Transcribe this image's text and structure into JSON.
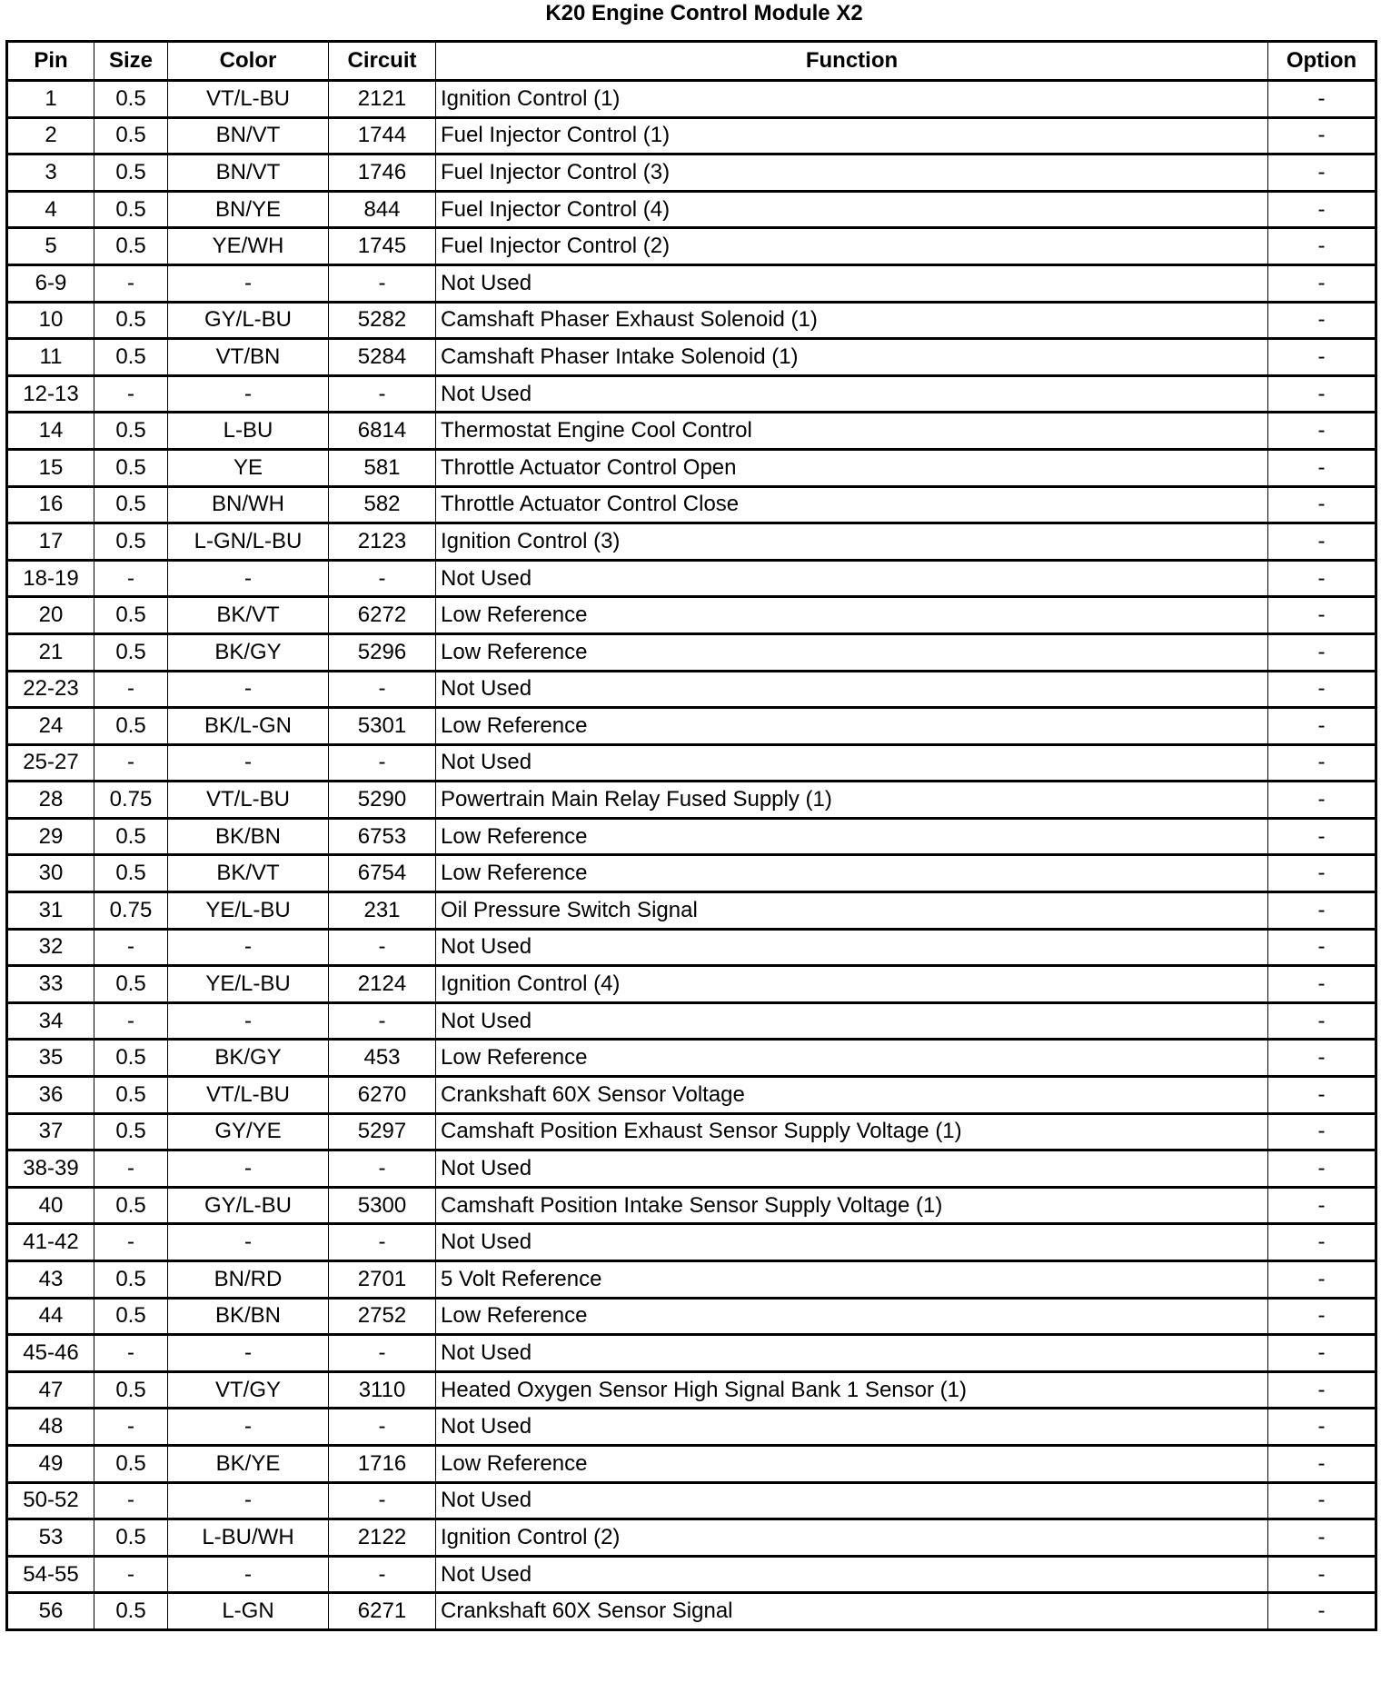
{
  "title": "K20 Engine Control Module X2",
  "columns": [
    "Pin",
    "Size",
    "Color",
    "Circuit",
    "Function",
    "Option"
  ],
  "rows": [
    [
      "1",
      "0.5",
      "VT/L-BU",
      "2121",
      "Ignition Control (1)",
      "-"
    ],
    [
      "2",
      "0.5",
      "BN/VT",
      "1744",
      "Fuel Injector Control (1)",
      "-"
    ],
    [
      "3",
      "0.5",
      "BN/VT",
      "1746",
      "Fuel Injector Control (3)",
      "-"
    ],
    [
      "4",
      "0.5",
      "BN/YE",
      "844",
      "Fuel Injector Control (4)",
      "-"
    ],
    [
      "5",
      "0.5",
      "YE/WH",
      "1745",
      "Fuel Injector Control (2)",
      "-"
    ],
    [
      "6-9",
      "-",
      "-",
      "-",
      "Not Used",
      "-"
    ],
    [
      "10",
      "0.5",
      "GY/L-BU",
      "5282",
      "Camshaft Phaser Exhaust Solenoid (1)",
      "-"
    ],
    [
      "11",
      "0.5",
      "VT/BN",
      "5284",
      "Camshaft Phaser Intake Solenoid (1)",
      "-"
    ],
    [
      "12-13",
      "-",
      "-",
      "-",
      "Not Used",
      "-"
    ],
    [
      "14",
      "0.5",
      "L-BU",
      "6814",
      "Thermostat Engine Cool Control",
      "-"
    ],
    [
      "15",
      "0.5",
      "YE",
      "581",
      "Throttle Actuator Control Open",
      "-"
    ],
    [
      "16",
      "0.5",
      "BN/WH",
      "582",
      "Throttle Actuator Control Close",
      "-"
    ],
    [
      "17",
      "0.5",
      "L-GN/L-BU",
      "2123",
      "Ignition Control (3)",
      "-"
    ],
    [
      "18-19",
      "-",
      "-",
      "-",
      "Not Used",
      "-"
    ],
    [
      "20",
      "0.5",
      "BK/VT",
      "6272",
      "Low Reference",
      "-"
    ],
    [
      "21",
      "0.5",
      "BK/GY",
      "5296",
      "Low Reference",
      "-"
    ],
    [
      "22-23",
      "-",
      "-",
      "-",
      "Not Used",
      "-"
    ],
    [
      "24",
      "0.5",
      "BK/L-GN",
      "5301",
      "Low Reference",
      "-"
    ],
    [
      "25-27",
      "-",
      "-",
      "-",
      "Not Used",
      "-"
    ],
    [
      "28",
      "0.75",
      "VT/L-BU",
      "5290",
      "Powertrain Main Relay Fused Supply (1)",
      "-"
    ],
    [
      "29",
      "0.5",
      "BK/BN",
      "6753",
      "Low Reference",
      "-"
    ],
    [
      "30",
      "0.5",
      "BK/VT",
      "6754",
      "Low Reference",
      "-"
    ],
    [
      "31",
      "0.75",
      "YE/L-BU",
      "231",
      "Oil Pressure Switch Signal",
      "-"
    ],
    [
      "32",
      "-",
      "-",
      "-",
      "Not Used",
      "-"
    ],
    [
      "33",
      "0.5",
      "YE/L-BU",
      "2124",
      "Ignition Control (4)",
      "-"
    ],
    [
      "34",
      "-",
      "-",
      "-",
      "Not Used",
      "-"
    ],
    [
      "35",
      "0.5",
      "BK/GY",
      "453",
      "Low Reference",
      "-"
    ],
    [
      "36",
      "0.5",
      "VT/L-BU",
      "6270",
      "Crankshaft 60X Sensor Voltage",
      "-"
    ],
    [
      "37",
      "0.5",
      "GY/YE",
      "5297",
      "Camshaft Position Exhaust Sensor Supply Voltage (1)",
      "-"
    ],
    [
      "38-39",
      "-",
      "-",
      "-",
      "Not Used",
      "-"
    ],
    [
      "40",
      "0.5",
      "GY/L-BU",
      "5300",
      "Camshaft Position Intake Sensor Supply Voltage (1)",
      "-"
    ],
    [
      "41-42",
      "-",
      "-",
      "-",
      "Not Used",
      "-"
    ],
    [
      "43",
      "0.5",
      "BN/RD",
      "2701",
      "5 Volt Reference",
      "-"
    ],
    [
      "44",
      "0.5",
      "BK/BN",
      "2752",
      "Low Reference",
      "-"
    ],
    [
      "45-46",
      "-",
      "-",
      "-",
      "Not Used",
      "-"
    ],
    [
      "47",
      "0.5",
      "VT/GY",
      "3110",
      "Heated Oxygen Sensor High Signal Bank 1 Sensor (1)",
      "-"
    ],
    [
      "48",
      "-",
      "-",
      "-",
      "Not Used",
      "-"
    ],
    [
      "49",
      "0.5",
      "BK/YE",
      "1716",
      "Low Reference",
      "-"
    ],
    [
      "50-52",
      "-",
      "-",
      "-",
      "Not Used",
      "-"
    ],
    [
      "53",
      "0.5",
      "L-BU/WH",
      "2122",
      "Ignition Control (2)",
      "-"
    ],
    [
      "54-55",
      "-",
      "-",
      "-",
      "Not Used",
      "-"
    ],
    [
      "56",
      "0.5",
      "L-GN",
      "6271",
      "Crankshaft 60X Sensor Signal",
      "-"
    ]
  ]
}
